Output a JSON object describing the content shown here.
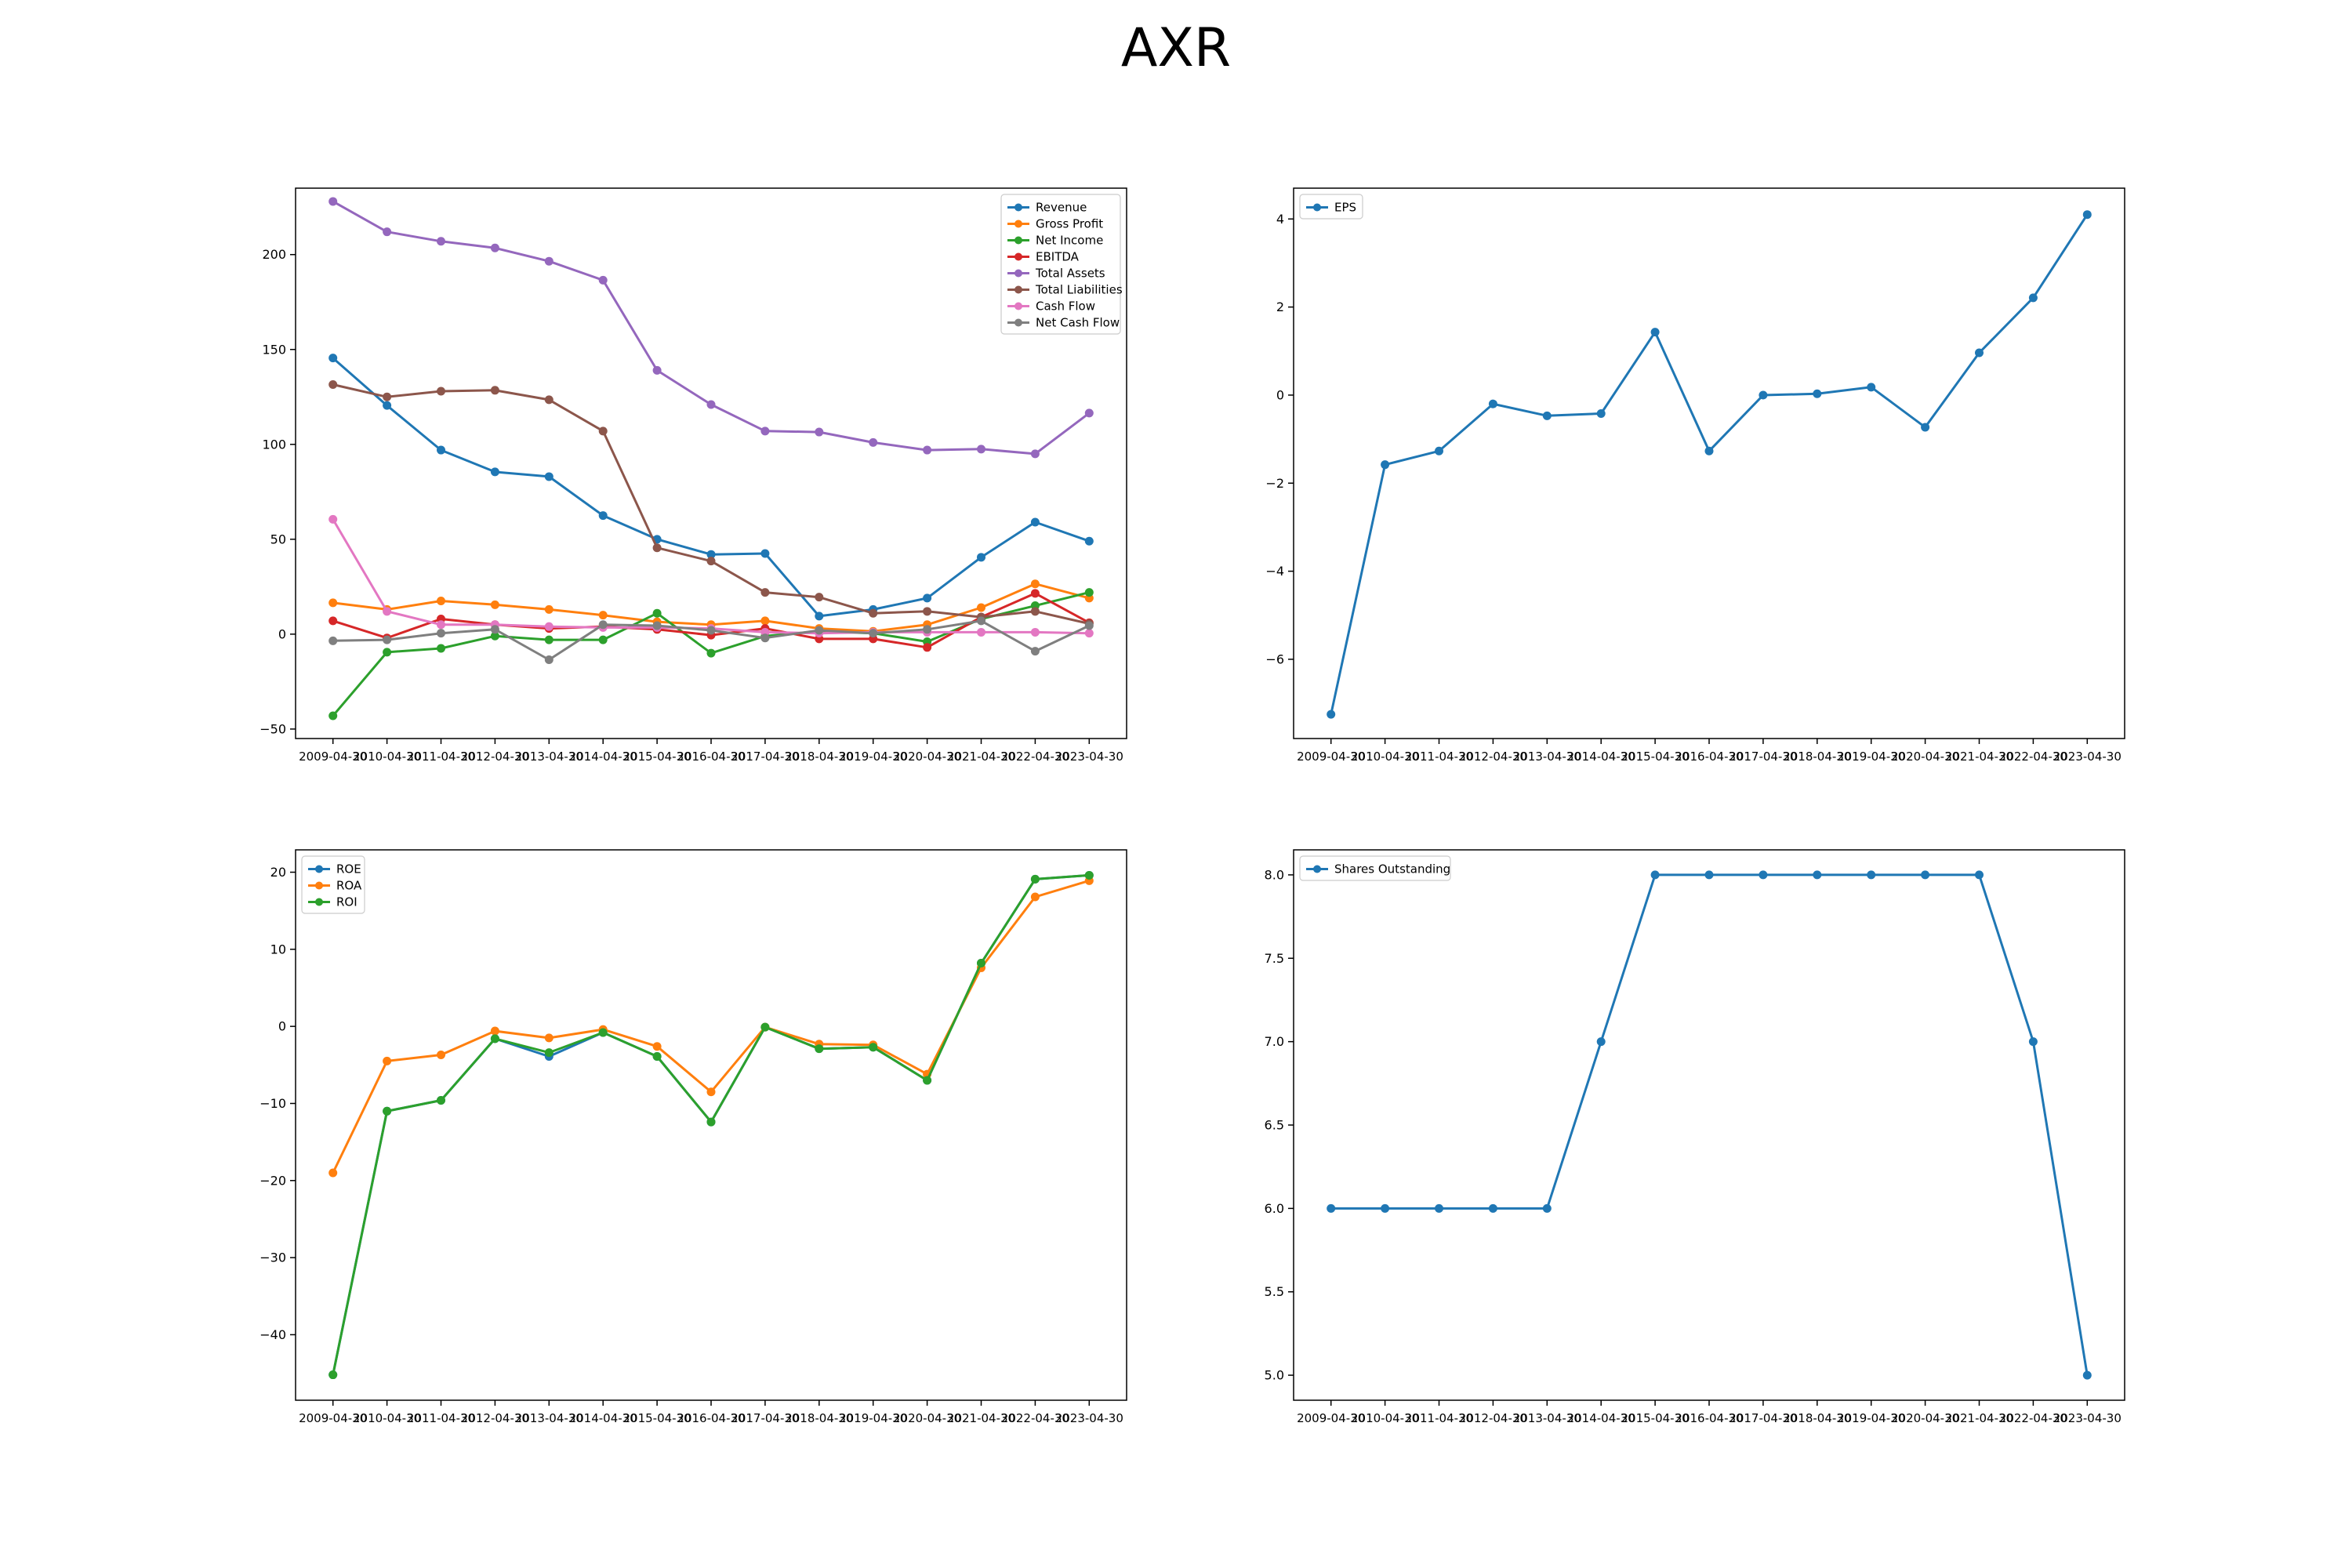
{
  "figure": {
    "title": "AXR"
  },
  "chart_data": [
    {
      "type": "line",
      "x": [
        "2009-04-30",
        "2010-04-30",
        "2011-04-30",
        "2012-04-30",
        "2013-04-30",
        "2014-04-30",
        "2015-04-30",
        "2016-04-30",
        "2017-04-30",
        "2018-04-30",
        "2019-04-30",
        "2020-04-30",
        "2021-04-30",
        "2022-04-30",
        "2023-04-30"
      ],
      "ylim": [
        -55,
        235
      ],
      "yticks": [
        -50,
        0,
        50,
        100,
        150,
        200
      ],
      "legend": "top-right",
      "series": [
        {
          "name": "Revenue",
          "color": "#1f77b4",
          "values": [
            145.5,
            120.5,
            97,
            85.5,
            83,
            62.5,
            50,
            42,
            42.5,
            9.5,
            13,
            19,
            40.5,
            59,
            49
          ]
        },
        {
          "name": "Gross Profit",
          "color": "#ff7f0e",
          "values": [
            16.5,
            13,
            17.5,
            15.5,
            13,
            10,
            6.5,
            5,
            7,
            3,
            1.5,
            5,
            14,
            26.5,
            19
          ]
        },
        {
          "name": "Net Income",
          "color": "#2ca02c",
          "values": [
            -43,
            -9.5,
            -7.5,
            -1,
            -3,
            -3,
            11,
            -10,
            -1,
            1.5,
            0.5,
            -4,
            8,
            15,
            22
          ]
        },
        {
          "name": "EBITDA",
          "color": "#d62728",
          "values": [
            7,
            -2,
            8,
            5,
            3,
            4,
            2.5,
            -0.5,
            3,
            -2.5,
            -2.5,
            -7,
            9,
            21.5,
            6
          ]
        },
        {
          "name": "Total Assets",
          "color": "#9467bd",
          "values": [
            228,
            212,
            207,
            203.5,
            196.5,
            186.5,
            139,
            121,
            107,
            106.5,
            101,
            97,
            97.5,
            95,
            116.5
          ]
        },
        {
          "name": "Total Liabilities",
          "color": "#8c564b",
          "values": [
            131.5,
            125,
            128,
            128.5,
            123.5,
            107,
            45.5,
            38.5,
            22,
            19.5,
            11,
            12,
            9,
            12,
            5.5
          ]
        },
        {
          "name": "Cash Flow",
          "color": "#e377c2",
          "values": [
            60.5,
            12,
            5,
            5,
            4,
            3.5,
            3.5,
            3,
            1,
            0.5,
            1,
            1,
            1,
            1,
            0.5
          ]
        },
        {
          "name": "Net Cash Flow",
          "color": "#7f7f7f",
          "values": [
            -3.5,
            -3,
            0.5,
            2.5,
            -13.5,
            5,
            4.5,
            2,
            -2,
            2,
            0.5,
            2.5,
            7,
            -9,
            4.5
          ]
        }
      ]
    },
    {
      "type": "line",
      "x": [
        "2009-04-30",
        "2010-04-30",
        "2011-04-30",
        "2012-04-30",
        "2013-04-30",
        "2014-04-30",
        "2015-04-30",
        "2016-04-30",
        "2017-04-30",
        "2018-04-30",
        "2019-04-30",
        "2020-04-30",
        "2021-04-30",
        "2022-04-30",
        "2023-04-30"
      ],
      "ylim": [
        -7.8,
        4.7
      ],
      "yticks": [
        -6,
        -4,
        -2,
        0,
        2,
        4
      ],
      "legend": "top-left",
      "series": [
        {
          "name": "EPS",
          "color": "#1f77b4",
          "values": [
            -7.25,
            -1.58,
            -1.27,
            -0.2,
            -0.47,
            -0.42,
            1.43,
            -1.27,
            0.0,
            0.03,
            0.18,
            -0.73,
            0.96,
            2.21,
            4.1
          ]
        }
      ]
    },
    {
      "type": "line",
      "x": [
        "2009-04-30",
        "2010-04-30",
        "2011-04-30",
        "2012-04-30",
        "2013-04-30",
        "2014-04-30",
        "2015-04-30",
        "2016-04-30",
        "2017-04-30",
        "2018-04-30",
        "2019-04-30",
        "2020-04-30",
        "2021-04-30",
        "2022-04-30",
        "2023-04-30"
      ],
      "ylim": [
        -48.5,
        22.9
      ],
      "yticks": [
        -40,
        -30,
        -20,
        -10,
        0,
        10,
        20
      ],
      "legend": "top-left",
      "series": [
        {
          "name": "ROE",
          "color": "#1f77b4",
          "values": [
            -45.2,
            -11,
            -9.6,
            -1.6,
            -3.9,
            -0.8,
            -3.9,
            -12.4,
            -0.1,
            -2.9,
            -2.7,
            -7,
            8.2,
            19.1,
            19.6
          ]
        },
        {
          "name": "ROA",
          "color": "#ff7f0e",
          "values": [
            -19,
            -4.5,
            -3.7,
            -0.6,
            -1.5,
            -0.4,
            -2.6,
            -8.5,
            -0.1,
            -2.3,
            -2.4,
            -6.2,
            7.6,
            16.8,
            18.9
          ]
        },
        {
          "name": "ROI",
          "color": "#2ca02c",
          "values": [
            -45.2,
            -11,
            -9.6,
            -1.6,
            -3.4,
            -0.8,
            -3.9,
            -12.4,
            -0.1,
            -2.9,
            -2.7,
            -7,
            8.2,
            19.1,
            19.6
          ]
        }
      ]
    },
    {
      "type": "line",
      "x": [
        "2009-04-30",
        "2010-04-30",
        "2011-04-30",
        "2012-04-30",
        "2013-04-30",
        "2014-04-30",
        "2015-04-30",
        "2016-04-30",
        "2017-04-30",
        "2018-04-30",
        "2019-04-30",
        "2020-04-30",
        "2021-04-30",
        "2022-04-30",
        "2023-04-30"
      ],
      "ylim": [
        4.85,
        8.15
      ],
      "yticks": [
        5.0,
        5.5,
        6.0,
        6.5,
        7.0,
        7.5,
        8.0
      ],
      "legend": "top-left",
      "series": [
        {
          "name": "Shares Outstanding",
          "color": "#1f77b4",
          "values": [
            6,
            6,
            6,
            6,
            6,
            7,
            8,
            8,
            8,
            8,
            8,
            8,
            8,
            7,
            5
          ]
        }
      ]
    }
  ]
}
